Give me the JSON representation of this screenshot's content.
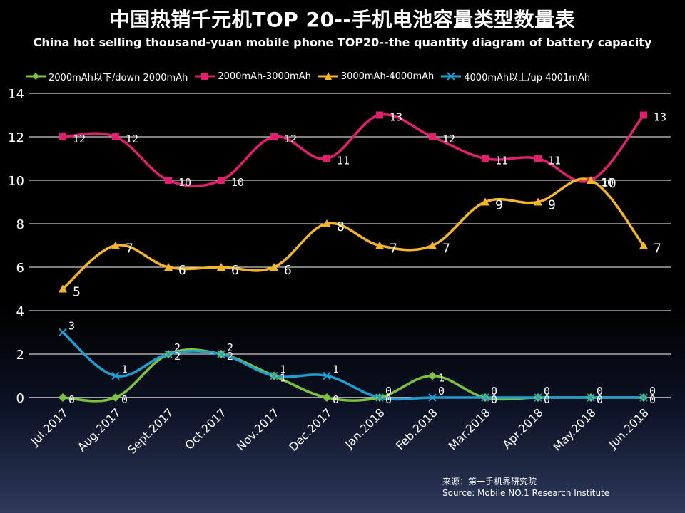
{
  "chart_data": {
    "type": "line",
    "title": "中国热销千元机TOP 20--手机电池容量类型数量表",
    "subtitle": "China hot selling thousand-yuan mobile phone TOP20--the quantity diagram of battery capacity",
    "categories": [
      "Jul.2017",
      "Aug.2017",
      "Sept.2017",
      "Oct.2017",
      "Nov.2017",
      "Dec.2017",
      "Jan.2018",
      "Feb.2018",
      "Mar.2018",
      "Apr.2018",
      "May.2018",
      "Jun.2018"
    ],
    "ylim": [
      0,
      14
    ],
    "yticks": [
      0,
      2,
      4,
      6,
      8,
      10,
      12,
      14
    ],
    "grid": true,
    "legend_position": "top",
    "series": [
      {
        "name": "2000mAh以下/down 2000mAh",
        "color": "#7dc242",
        "marker": "diamond",
        "values": [
          0,
          0,
          2,
          2,
          1,
          0,
          0,
          1,
          0,
          0,
          0,
          0
        ],
        "labels": [
          "0",
          "0",
          "2",
          "2",
          "1",
          "0",
          "0",
          "1",
          "0",
          "0",
          "0",
          "0"
        ]
      },
      {
        "name": "2000mAh-3000mAh",
        "color": "#e0206e",
        "marker": "square",
        "values": [
          12,
          12,
          10,
          10,
          12,
          11,
          13,
          12,
          11,
          11,
          10,
          13
        ],
        "labels": [
          "12",
          "12",
          "10",
          "10",
          "12",
          "11",
          "13",
          "12",
          "11",
          "11",
          "10",
          "13"
        ]
      },
      {
        "name": "3000mAh-4000mAh",
        "color": "#f5b52a",
        "marker": "triangle",
        "values": [
          5,
          7,
          6,
          6,
          6,
          8,
          7,
          7,
          9,
          9,
          10,
          7
        ],
        "labels": [
          "5",
          "7",
          "6",
          "6",
          "6",
          "8",
          "7",
          "7",
          "9",
          "9",
          "10",
          "7"
        ]
      },
      {
        "name": "4000mAh以上/up 4001mAh",
        "color": "#1f9fd0",
        "marker": "x",
        "values": [
          3,
          1,
          2,
          2,
          1,
          1,
          0,
          0,
          0,
          0,
          0,
          0
        ],
        "labels": [
          "3",
          "1",
          "2",
          "2",
          "1",
          "1",
          "0",
          "0",
          "0",
          "0",
          "0",
          "0"
        ]
      }
    ]
  },
  "source": {
    "line1": "来源：第一手机界研究院",
    "line2": "Source: Mobile NO.1 Research Institute"
  }
}
